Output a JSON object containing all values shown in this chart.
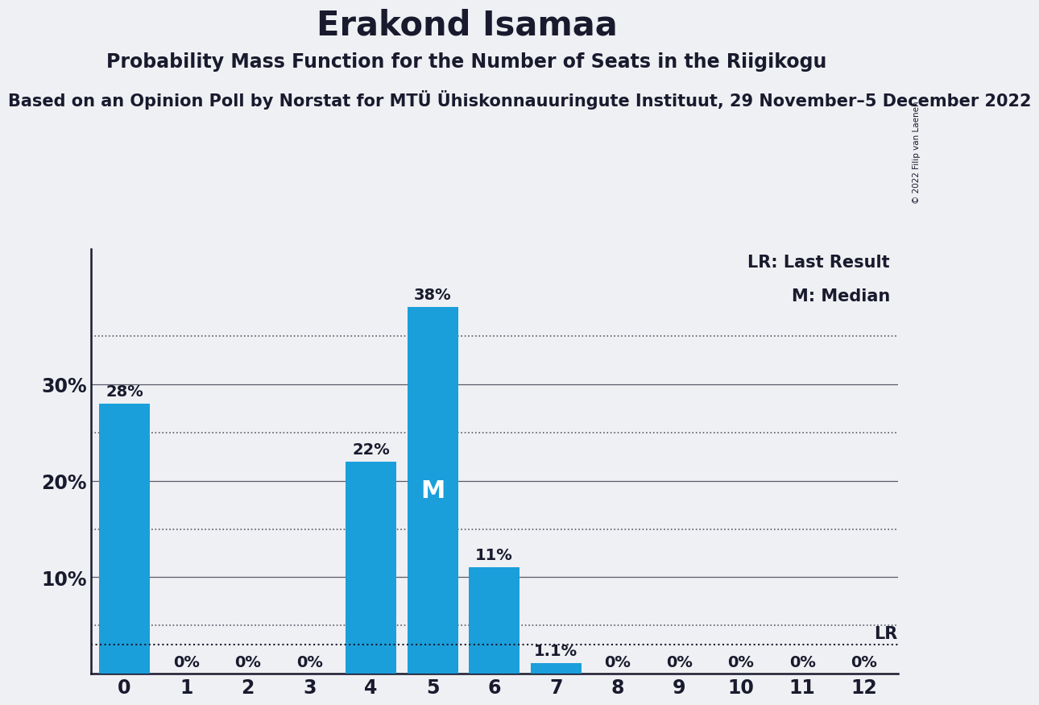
{
  "title": "Erakond Isamaa",
  "subtitle": "Probability Mass Function for the Number of Seats in the Riigikogu",
  "source_line": "Based on an Opinion Poll by Norstat for MTÜ Ühiskonnauuringute Instituut, 29 November–5 December 2022",
  "copyright": "© 2022 Filip van Laenen",
  "categories": [
    0,
    1,
    2,
    3,
    4,
    5,
    6,
    7,
    8,
    9,
    10,
    11,
    12
  ],
  "values": [
    0.28,
    0.0,
    0.0,
    0.0,
    0.22,
    0.38,
    0.11,
    0.011,
    0.0,
    0.0,
    0.0,
    0.0,
    0.0
  ],
  "bar_color": "#1a9fdb",
  "bar_labels": [
    "28%",
    "0%",
    "0%",
    "0%",
    "22%",
    "38%",
    "11%",
    "1.1%",
    "0%",
    "0%",
    "0%",
    "0%",
    "0%"
  ],
  "median_seat": 5,
  "lr_value": 0.03,
  "background_color": "#eef0f3",
  "yticks": [
    0.0,
    0.1,
    0.2,
    0.3
  ],
  "ytick_labels": [
    "",
    "10%",
    "20%",
    "30%"
  ],
  "ylim": [
    0,
    0.44
  ],
  "solid_lines": [
    0.1,
    0.2,
    0.3
  ],
  "dotted_lines": [
    0.05,
    0.15,
    0.25,
    0.35
  ],
  "legend_lr": "LR: Last Result",
  "legend_m": "M: Median",
  "title_fontsize": 30,
  "subtitle_fontsize": 17,
  "source_fontsize": 15,
  "tick_fontsize": 17,
  "bar_label_fontsize": 14,
  "legend_fontsize": 15
}
